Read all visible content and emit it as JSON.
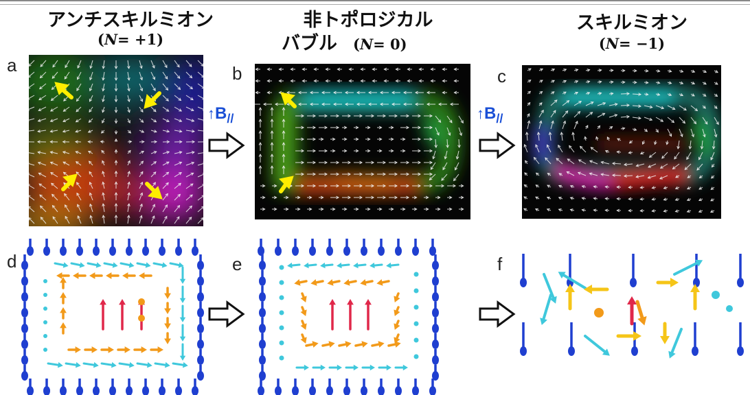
{
  "titles": {
    "a_main": "アンチスキルミオン",
    "a_sub_pre": "(",
    "a_sub_n": "N",
    "a_sub_post": "= +1)",
    "b_main1": "非トポロジカル",
    "b_main2": "バブル",
    "b_sub_pre": "(",
    "b_sub_n": "N",
    "b_sub_post": "= 0)",
    "c_main": "スキルミオン",
    "c_sub_pre": "(",
    "c_sub_n": "N",
    "c_sub_post": "= −1)"
  },
  "panel_labels": {
    "a": "a",
    "b": "b",
    "c": "c",
    "d": "d",
    "e": "e",
    "f": "f"
  },
  "field": {
    "arrow": "↑",
    "letter": "B",
    "subscript": "//"
  },
  "colors": {
    "field_blue": "#1a4fd6",
    "yellow_arrow": "#ffee00",
    "spin_blue": "#1f3fd0",
    "spin_cyan": "#3fc8dc",
    "spin_orange": "#f29a1a",
    "spin_red": "#e0284a",
    "spin_yellow": "#f5c518"
  },
  "icons": [
    "outline-right-arrow-icon",
    "up-arrow-icon",
    "yellow-arrow-icon"
  ]
}
